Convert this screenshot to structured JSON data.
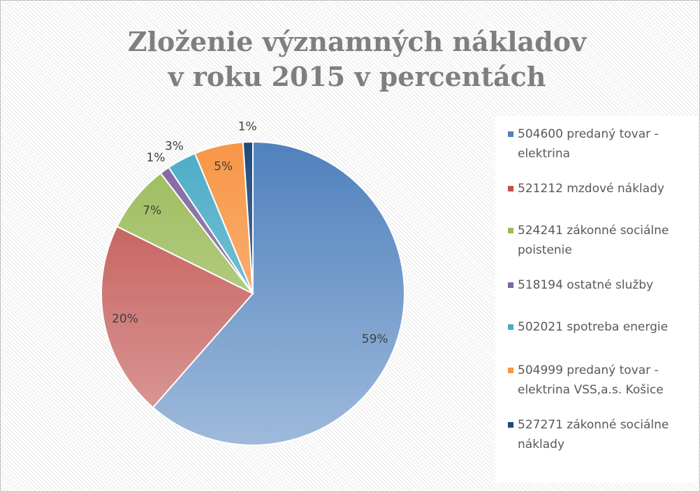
{
  "chart_data": {
    "type": "pie",
    "title": [
      "Zloženie významných nákladov",
      "v roku 2015 v percentách"
    ],
    "categories": [
      "504600 predaný tovar - elektrina",
      "521212 mzdové náklady",
      "524241 zákonné sociálne poistenie",
      "518194 ostatné služby",
      "502021 spotreba energie",
      "504999 predaný tovar - elektrina VSS,a.s. Košice",
      "527271 zákonné sociálne náklady"
    ],
    "values": [
      59,
      20,
      7,
      1,
      3,
      5,
      1
    ],
    "value_labels": [
      "59%",
      "20%",
      "7%",
      "1%",
      "3%",
      "5%",
      "1%"
    ],
    "colors": [
      "#4f81bd",
      "#c0504d",
      "#9bbb59",
      "#8064a2",
      "#4bacc6",
      "#f79646",
      "#1f497d"
    ],
    "legend": "right"
  }
}
